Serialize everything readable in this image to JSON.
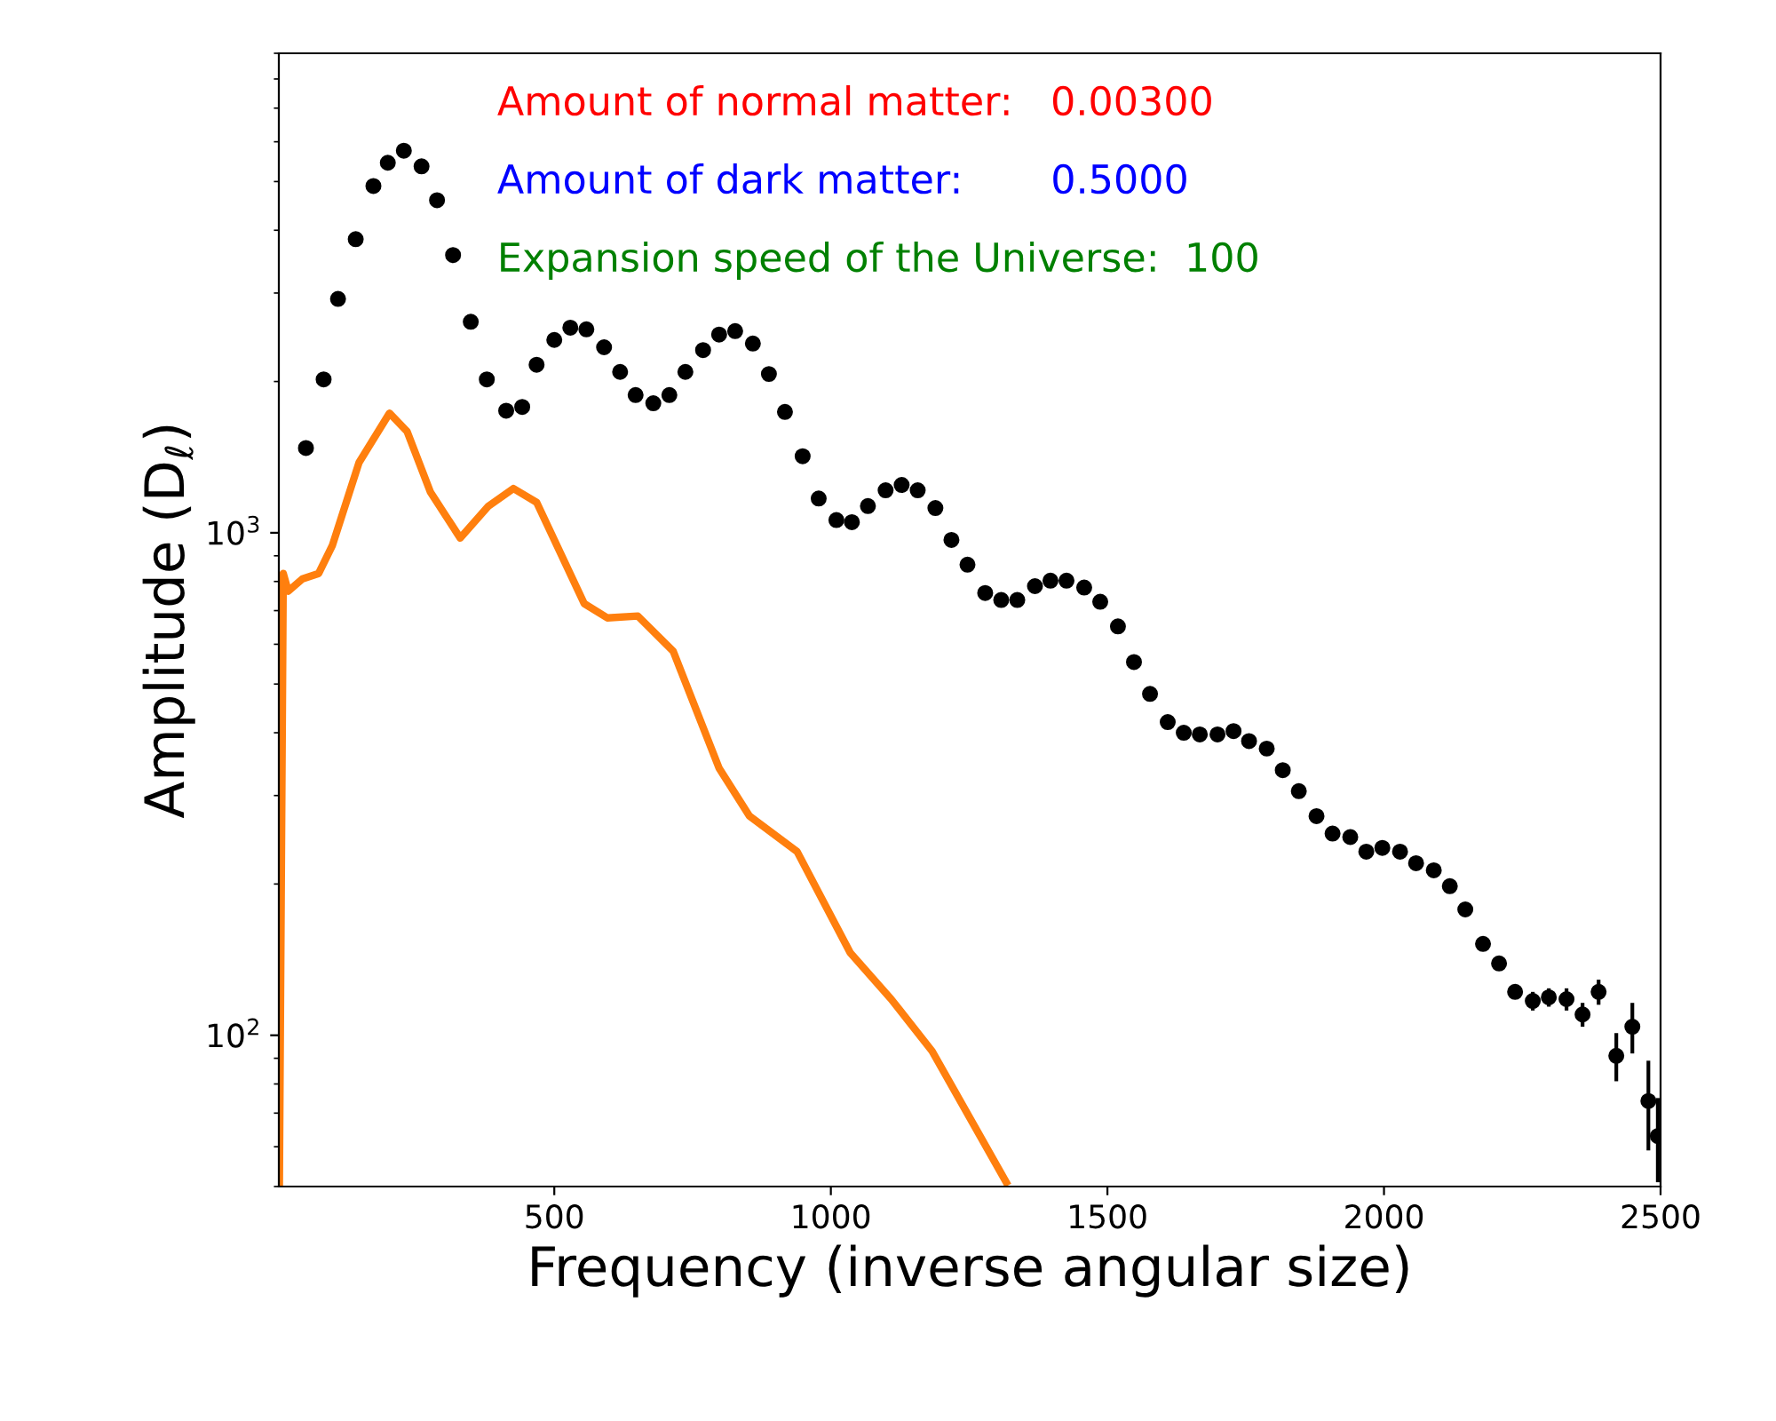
{
  "chart_data": {
    "type": "scatter",
    "xlabel": "Frequency (inverse angular size)",
    "ylabel": "Amplitude (D$_{ℓ}$)",
    "log": "y",
    "xlim": [
      2,
      2500
    ],
    "ylim": [
      50,
      9000
    ],
    "xticks": [
      500,
      1000,
      1500,
      2000,
      2500
    ],
    "yticks": [
      {
        "value": 100,
        "label": "10$^{2}$"
      },
      {
        "value": 1000,
        "label": "10$^{3}$"
      }
    ],
    "grid": false,
    "annotations": [
      "Amount of normal matter:   0.00300",
      "Amount of dark matter:       0.5000",
      "Expansion speed of the Universe:  100"
    ],
    "series": [
      {
        "color": "#000000",
        "marker": "circle",
        "x": [
          51,
          83,
          109,
          141,
          173,
          199,
          228,
          260,
          288,
          317,
          349,
          378,
          413,
          442,
          468,
          500,
          529,
          558,
          590,
          619,
          647,
          679,
          708,
          737,
          769,
          798,
          827,
          859,
          888,
          917,
          949,
          978,
          1010,
          1038,
          1067,
          1099,
          1128,
          1157,
          1189,
          1218,
          1247,
          1279,
          1308,
          1337,
          1369,
          1397,
          1426,
          1458,
          1487,
          1519,
          1548,
          1577,
          1609,
          1638,
          1667,
          1699,
          1728,
          1756,
          1788,
          1817,
          1846,
          1878,
          1907,
          1939,
          1968,
          1997,
          2029,
          2058,
          2090,
          2119,
          2147,
          2179,
          2208,
          2237,
          2269,
          2298,
          2330,
          2359,
          2388,
          2420,
          2449,
          2478,
          2495
        ],
        "values": [
          1475,
          2020,
          2920,
          3840,
          4900,
          5450,
          5760,
          5360,
          4590,
          3570,
          2630,
          2020,
          1750,
          1780,
          2160,
          2420,
          2560,
          2540,
          2340,
          2090,
          1880,
          1810,
          1880,
          2090,
          2310,
          2480,
          2520,
          2380,
          2070,
          1740,
          1420,
          1170,
          1060,
          1050,
          1130,
          1215,
          1245,
          1215,
          1120,
          968,
          864,
          759,
          735,
          735,
          783,
          803,
          803,
          778,
          729,
          651,
          553,
          478,
          420,
          400,
          397,
          397,
          403,
          385,
          372,
          337,
          306,
          273,
          252,
          248,
          232,
          236,
          232,
          220,
          213,
          198,
          178,
          152,
          139,
          122,
          117,
          119,
          118,
          110,
          122,
          91,
          104,
          74,
          63
        ],
        "errors": [
          null,
          null,
          null,
          null,
          null,
          null,
          null,
          null,
          null,
          null,
          null,
          null,
          null,
          null,
          null,
          null,
          null,
          null,
          null,
          null,
          null,
          null,
          null,
          null,
          null,
          null,
          null,
          null,
          null,
          null,
          null,
          null,
          null,
          null,
          null,
          null,
          null,
          null,
          null,
          null,
          null,
          null,
          null,
          null,
          null,
          null,
          null,
          null,
          null,
          null,
          null,
          null,
          null,
          null,
          null,
          null,
          null,
          null,
          null,
          null,
          null,
          null,
          null,
          null,
          null,
          null,
          null,
          null,
          null,
          null,
          null,
          null,
          null,
          4,
          5,
          5,
          6,
          6,
          7,
          10,
          12,
          15,
          12
        ]
      },
      {
        "type": "line",
        "color": "#ff7f0e",
        "marker": "none",
        "line_style": "solid",
        "x": [
          3,
          10,
          19,
          45,
          74,
          99,
          147,
          202,
          234,
          276,
          330,
          381,
          426,
          468,
          554,
          596,
          651,
          715,
          798,
          853,
          939,
          1035,
          1109,
          1183,
          1317
        ],
        "values": [
          50,
          830,
          765,
          810,
          830,
          945,
          1380,
          1730,
          1590,
          1205,
          976,
          1130,
          1225,
          1150,
          723,
          677,
          683,
          581,
          340,
          273,
          232,
          146,
          118,
          93,
          51
        ]
      }
    ]
  }
}
